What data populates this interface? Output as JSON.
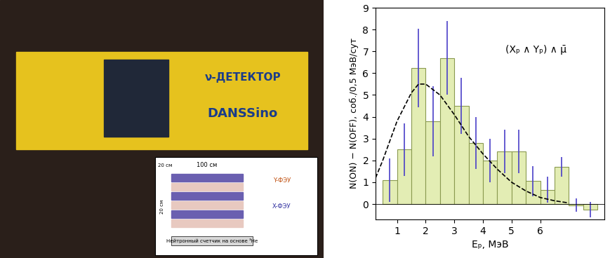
{
  "chart_data": {
    "type": "bar",
    "xlabel": "Eₚ, МэВ",
    "ylabel": "N(ON) − N(OFF), соб./0,5 МэВ/сут",
    "annotation": "(Xₚ ∧ Yₚ) ∧ μ̄",
    "bins": [
      0.5,
      1.0,
      1.5,
      2.0,
      2.5,
      3.0,
      3.5,
      4.0,
      4.5,
      5.0,
      5.5,
      6.0,
      6.5,
      7.0,
      7.5,
      8.0
    ],
    "values": [
      1.1,
      2.5,
      6.25,
      3.8,
      6.7,
      4.5,
      2.8,
      2.0,
      2.4,
      2.4,
      1.05,
      0.65,
      1.7,
      -0.05,
      -0.25
    ],
    "errors": [
      1.0,
      1.2,
      1.8,
      1.6,
      1.7,
      1.3,
      1.2,
      1.0,
      1.0,
      1.0,
      0.7,
      0.6,
      0.45,
      0.3,
      0.35
    ],
    "color": "#e3edb4",
    "fit": {
      "x": [
        0.25,
        0.5,
        1.0,
        1.5,
        1.75,
        2.0,
        2.5,
        3.0,
        3.5,
        4.0,
        4.5,
        5.0,
        5.5,
        6.0,
        6.5,
        7.0
      ],
      "values": [
        1.2,
        2.0,
        3.8,
        5.1,
        5.5,
        5.5,
        5.0,
        4.1,
        3.1,
        2.3,
        1.6,
        1.0,
        0.6,
        0.3,
        0.15,
        0.05
      ],
      "line_style": "dashed",
      "color": "#000000"
    },
    "xlim": [
      0.25,
      8.25
    ],
    "xticks": [
      1,
      2,
      3,
      4,
      5,
      6
    ],
    "ylim": [
      -0.7,
      9
    ],
    "yticks": [
      0,
      1,
      2,
      3,
      4,
      5,
      6,
      7,
      8,
      9
    ],
    "grid": false
  },
  "photo": {
    "sign_top": "ν-ДЕТЕКТОР",
    "sign_bottom": "DANSSino",
    "inset": {
      "length": "100 см",
      "width": "20 см",
      "height": "20 см",
      "y_pmt": "Y-ФЭУ",
      "x_pmt": "X-ФЭУ",
      "counter": "Нейтронный счетчик на основе ³He"
    }
  }
}
